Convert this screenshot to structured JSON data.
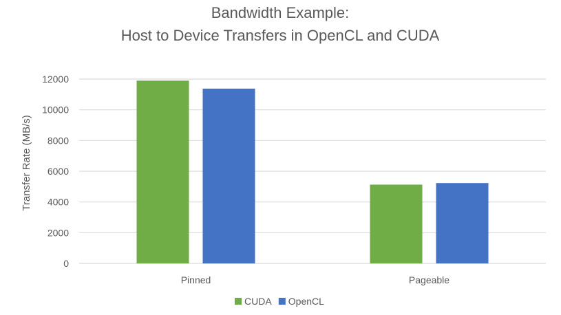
{
  "chart_data": {
    "type": "bar",
    "title": "Bandwidth Example:",
    "subtitle": "Host to Device Transfers in OpenCL and CUDA",
    "xlabel": "",
    "ylabel": "Transfer Rate (MB/s)",
    "categories": [
      "Pinned",
      "Pageable"
    ],
    "series": [
      {
        "name": "CUDA",
        "values": [
          11900,
          5130
        ],
        "color": "#70ad47"
      },
      {
        "name": "OpenCL",
        "values": [
          11380,
          5230
        ],
        "color": "#4472c4"
      }
    ],
    "ylim": [
      0,
      12000
    ],
    "yticks": [
      0,
      2000,
      4000,
      6000,
      8000,
      10000,
      12000
    ],
    "grid": true,
    "legend_position": "bottom"
  }
}
